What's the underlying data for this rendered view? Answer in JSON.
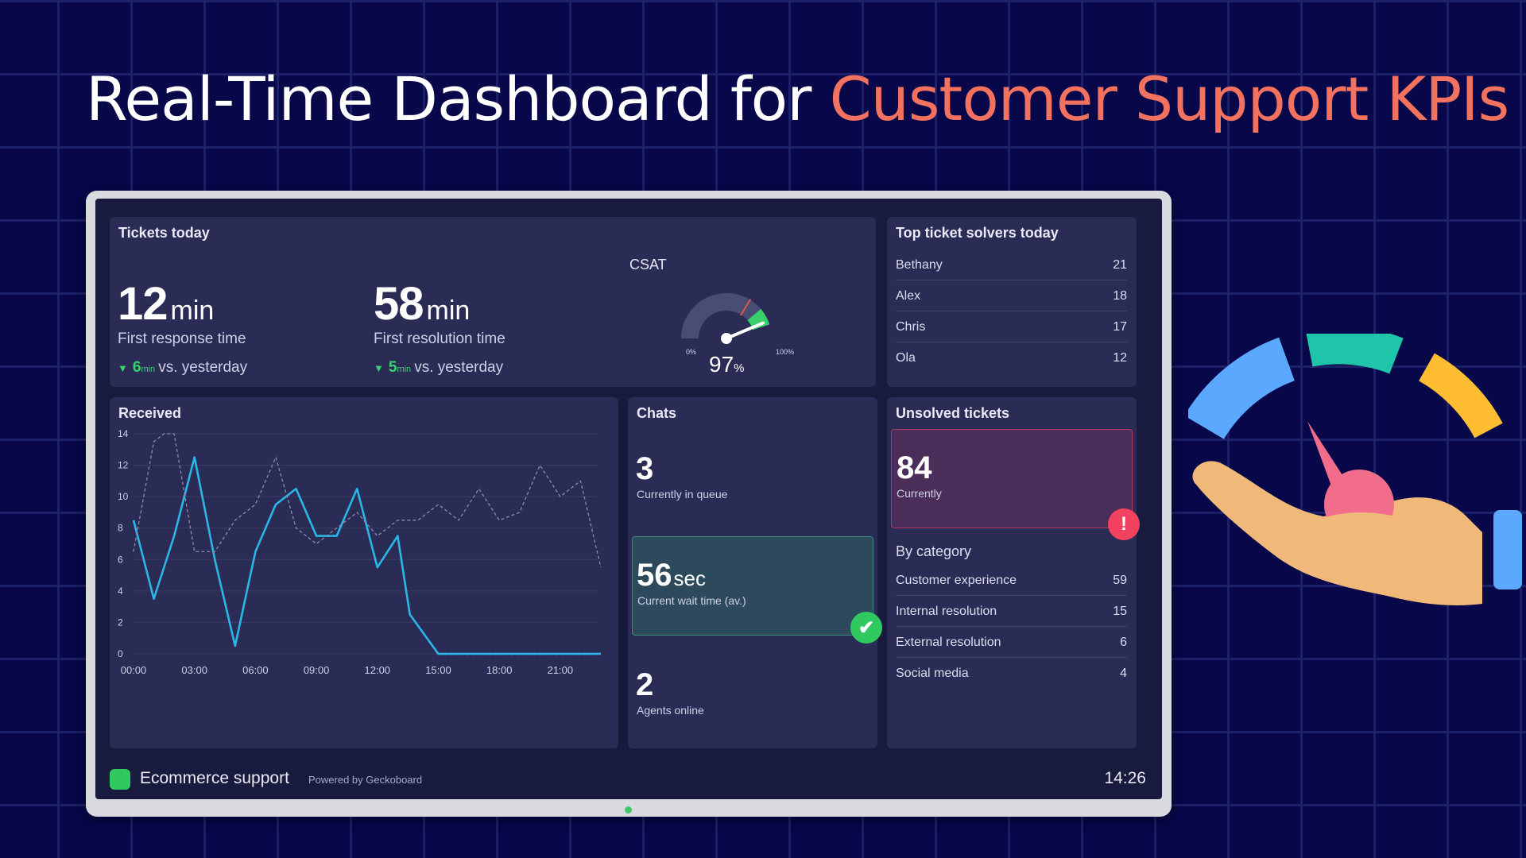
{
  "headline": {
    "part1": "Real-Time Dashboard for ",
    "part2": "Customer Support KPIs"
  },
  "colors": {
    "accent": "#f2715f",
    "background": "#07074a",
    "good": "#37d06d",
    "alert": "#f1435f",
    "line_today": "#2ab7e8",
    "line_yesterday": "#8a8ca8"
  },
  "tickets": {
    "title": "Tickets today",
    "response": {
      "value": "12",
      "unit": "min",
      "label": "First response time",
      "delta_value": "6",
      "delta_unit": "min",
      "delta_text": "vs. yesterday"
    },
    "resolution": {
      "value": "58",
      "unit": "min",
      "label": "First resolution time",
      "delta_value": "5",
      "delta_unit": "min",
      "delta_text": "vs. yesterday"
    },
    "csat": {
      "title": "CSAT",
      "value": "97",
      "unit": "%",
      "min_label": "0%",
      "max_label": "100%",
      "fraction": 0.97
    }
  },
  "solvers": {
    "title": "Top ticket solvers today",
    "rows": [
      {
        "name": "Bethany",
        "count": "21"
      },
      {
        "name": "Alex",
        "count": "18"
      },
      {
        "name": "Chris",
        "count": "17"
      },
      {
        "name": "Ola",
        "count": "12"
      }
    ]
  },
  "received": {
    "title": "Received"
  },
  "chart_data": {
    "type": "line",
    "title": "Received",
    "x_ticks": [
      "00:00",
      "03:00",
      "06:00",
      "09:00",
      "12:00",
      "15:00",
      "18:00",
      "21:00"
    ],
    "y_ticks": [
      "0",
      "2",
      "4",
      "6",
      "8",
      "10",
      "12",
      "14"
    ],
    "ylim": [
      0,
      14
    ],
    "xlim": [
      0,
      23
    ],
    "grid": true,
    "series": [
      {
        "style": "solid",
        "x": [
          0,
          1,
          2,
          3,
          4,
          5,
          6,
          7,
          8,
          9,
          10,
          11,
          12,
          13,
          13.6,
          15,
          23
        ],
        "values": [
          8.5,
          3.5,
          7.5,
          12.5,
          6.0,
          0.5,
          6.5,
          9.5,
          10.5,
          7.5,
          7.5,
          10.5,
          5.5,
          7.5,
          2.5,
          0,
          0
        ]
      },
      {
        "style": "dashed",
        "x": [
          0,
          1,
          1.5,
          2,
          3,
          4,
          5,
          6,
          7,
          8,
          9,
          10,
          11,
          12,
          13,
          14,
          15,
          16,
          17,
          18,
          19,
          20,
          21,
          22,
          23
        ],
        "values": [
          6.5,
          13.5,
          14,
          14,
          6.5,
          6.5,
          8.5,
          9.5,
          12.5,
          8.0,
          7.0,
          8.0,
          9.0,
          7.5,
          8.5,
          8.5,
          9.5,
          8.5,
          10.5,
          8.5,
          9.0,
          12.0,
          10.0,
          11.0,
          5.5
        ]
      }
    ]
  },
  "chats": {
    "title": "Chats",
    "queue": {
      "value": "3",
      "label": "Currently in queue"
    },
    "wait": {
      "value": "56",
      "unit": "sec",
      "label": "Current wait time (av.)"
    },
    "agents": {
      "value": "2",
      "label": "Agents online"
    },
    "ok_glyph": "✔"
  },
  "unsolved": {
    "title": "Unsolved tickets",
    "current": {
      "value": "84",
      "label": "Currently"
    },
    "alert_glyph": "!",
    "by_category_title": "By category",
    "categories": [
      {
        "name": "Customer experience",
        "count": "59"
      },
      {
        "name": "Internal resolution",
        "count": "15"
      },
      {
        "name": "External resolution",
        "count": "6"
      },
      {
        "name": "Social media",
        "count": "4"
      }
    ]
  },
  "footer": {
    "name": "Ecommerce support",
    "powered": "Powered by Geckoboard",
    "time": "14:26"
  },
  "illustration": {
    "icon": "hand-holding-gauge-icon"
  }
}
